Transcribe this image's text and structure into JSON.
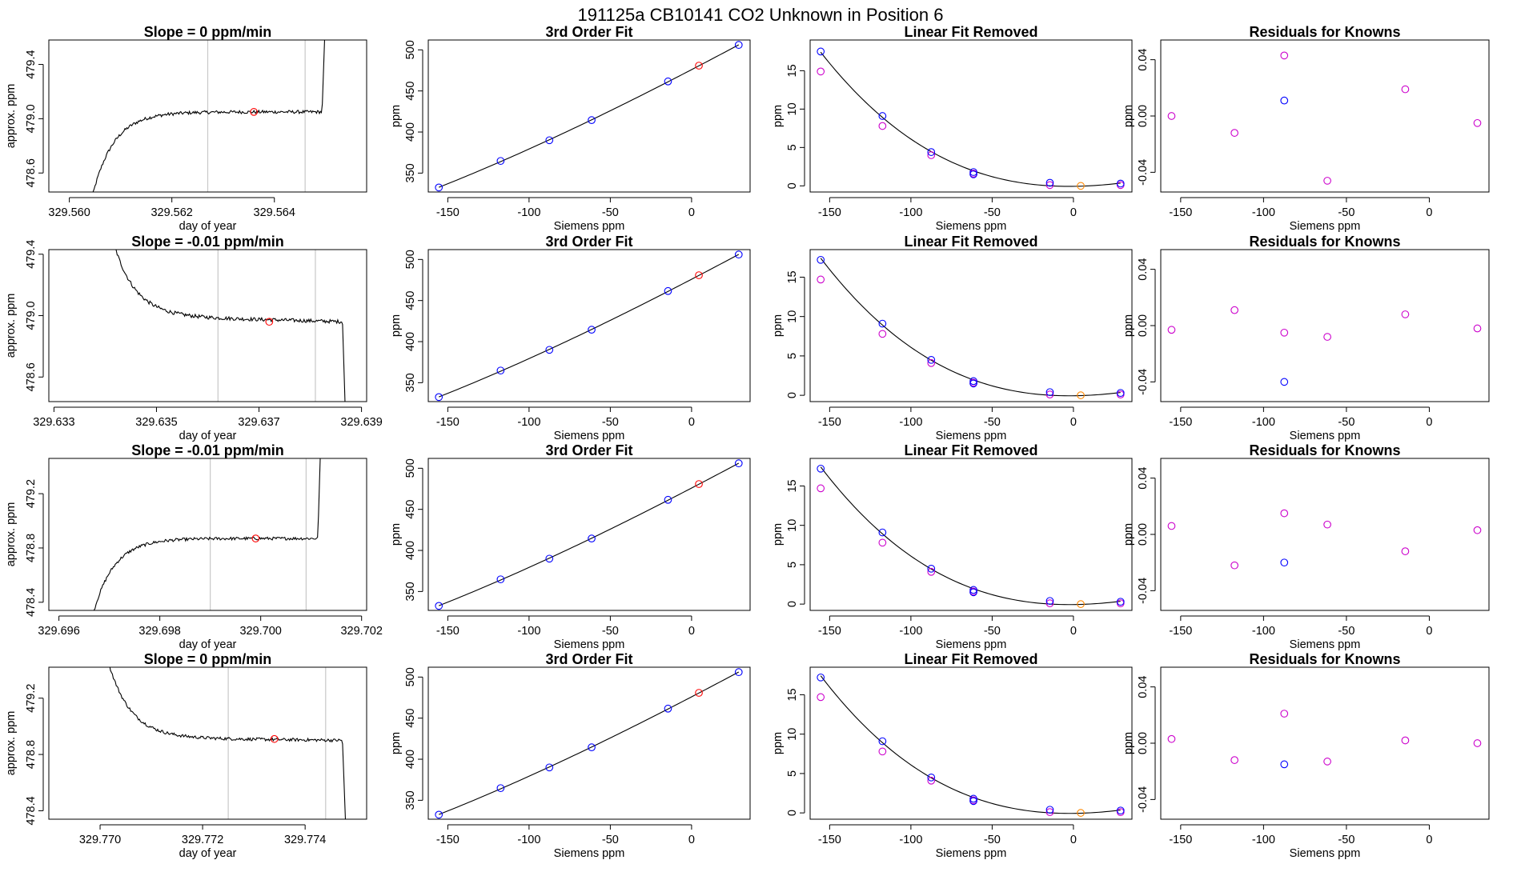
{
  "title": "191125a     CB10141    CO2 Unknown in Position  6",
  "colors": {
    "known": "#0000ff",
    "residual": "#cc00cc",
    "unknown": "#ff0000",
    "linear_unknown": "#ff8800",
    "vline": "#c8c8c8"
  },
  "chart_data": [
    {
      "row": 0,
      "col": 0,
      "type": "line",
      "title": "Slope =  0  ppm/min",
      "xlabel": "day of year",
      "ylabel": "approx. ppm",
      "xlim": [
        329.5596,
        329.5658
      ],
      "ylim": [
        478.46,
        479.58
      ],
      "xticks": [
        329.56,
        329.562,
        329.564
      ],
      "xtick_labels": [
        "329.560",
        "329.562",
        "329.564"
      ],
      "yticks": [
        478.6,
        479.0,
        479.4
      ],
      "ytick_labels": [
        "478.6",
        "479.0",
        "479.4"
      ],
      "vlines": [
        329.5627,
        329.5646
      ],
      "unknown_point": [
        329.5636,
        479.05
      ],
      "shape": "rise",
      "t_start": 329.5604,
      "plateau": 479.05,
      "t_end": 329.565,
      "level_low": 478.35,
      "level_high": 479.8,
      "noise": 0.012
    },
    {
      "row": 0,
      "col": 1,
      "type": "scatter",
      "title": "3rd Order Fit",
      "xlabel": "Siemens ppm",
      "ylabel": "ppm",
      "xlim": [
        -162,
        36
      ],
      "ylim": [
        327,
        512
      ],
      "xticks": [
        -150,
        -100,
        -50,
        0
      ],
      "xtick_labels": [
        "-150",
        "-100",
        "-50",
        "0"
      ],
      "yticks": [
        350,
        400,
        450,
        500
      ],
      "ytick_labels": [
        "350",
        "400",
        "450",
        "500"
      ],
      "knowns": {
        "x": [
          -155.5,
          -117.5,
          -87.5,
          -61.5,
          -14.5,
          29
        ],
        "y": [
          332.5,
          364.8,
          390,
          414.5,
          461.6,
          506
        ]
      },
      "unknown": {
        "x": [
          4.5
        ],
        "y": [
          480.8
        ]
      },
      "fit_line": true
    },
    {
      "row": 0,
      "col": 2,
      "type": "scatter",
      "title": "Linear Fit Removed",
      "xlabel": "Siemens ppm",
      "ylabel": "ppm",
      "xlim": [
        -162,
        36
      ],
      "ylim": [
        -0.8,
        19
      ],
      "xticks": [
        -150,
        -100,
        -50,
        0
      ],
      "xtick_labels": [
        "-150",
        "-100",
        "-50",
        "0"
      ],
      "yticks": [
        0,
        5,
        10,
        15
      ],
      "ytick_labels": [
        "0",
        "5",
        "10",
        "15"
      ],
      "knowns": {
        "x": [
          -155.5,
          -117.5,
          -87.5,
          -61.5,
          -61.5,
          -14.5,
          29
        ],
        "y": [
          17.5,
          9.1,
          4.4,
          1.8,
          1.5,
          0.4,
          0.3
        ]
      },
      "residual_points": {
        "x": [
          -155.5,
          -117.5,
          -87.5,
          -61.5,
          -14.5,
          29
        ],
        "y": [
          14.9,
          7.8,
          4.0,
          1.6,
          0.1,
          0.1
        ]
      },
      "unknown": {
        "x": [
          4.5
        ],
        "y": [
          0.0
        ]
      },
      "fit_curve": true
    },
    {
      "row": 0,
      "col": 3,
      "type": "scatter",
      "title": "Residuals for Knowns",
      "xlabel": "Siemens ppm",
      "ylabel": "ppm",
      "xlim": [
        -162,
        36
      ],
      "ylim": [
        -0.054,
        0.054
      ],
      "xticks": [
        -150,
        -100,
        -50,
        0
      ],
      "xtick_labels": [
        "-150",
        "-100",
        "-50",
        "0"
      ],
      "yticks": [
        -0.04,
        0.0,
        0.04
      ],
      "ytick_labels": [
        "-0.04",
        "0.00",
        "0.04"
      ],
      "knowns": {
        "x": [
          -87.5
        ],
        "y": [
          0.011
        ]
      },
      "residual_points": {
        "x": [
          -155.5,
          -117.5,
          -87.5,
          -61.5,
          -14.5,
          29
        ],
        "y": [
          0.0,
          -0.012,
          0.043,
          -0.046,
          0.019,
          -0.005
        ]
      }
    },
    {
      "row": 1,
      "col": 0,
      "type": "line",
      "title": "Slope =  -0.01  ppm/min",
      "xlabel": "day of year",
      "ylabel": "approx. ppm",
      "xlim": [
        329.6329,
        329.6391
      ],
      "ylim": [
        478.44,
        479.43
      ],
      "xticks": [
        329.633,
        329.635,
        329.637,
        329.639
      ],
      "xtick_labels": [
        "329.633",
        "329.635",
        "329.637",
        "329.639"
      ],
      "vlines": [
        329.6362,
        329.6381
      ],
      "unknown_point": [
        329.6372,
        478.96
      ],
      "yticks": [
        478.6,
        479.0,
        479.4
      ],
      "ytick_labels": [
        "478.6",
        "479.0",
        "479.4"
      ],
      "shape": "fall",
      "t_start": 329.634,
      "plateau": 479.0,
      "plateau_end": 478.96,
      "t_end": 329.6387,
      "level_low": 478.2,
      "level_high": 479.7,
      "noise": 0.012
    },
    {
      "row": 1,
      "col": 1,
      "type": "scatter",
      "title": "3rd Order Fit",
      "xlabel": "Siemens ppm",
      "ylabel": "ppm",
      "xlim": [
        -162,
        36
      ],
      "ylim": [
        327,
        512
      ],
      "xticks": [
        -150,
        -100,
        -50,
        0
      ],
      "xtick_labels": [
        "-150",
        "-100",
        "-50",
        "0"
      ],
      "yticks": [
        350,
        400,
        450,
        500
      ],
      "ytick_labels": [
        "350",
        "400",
        "450",
        "500"
      ],
      "knowns": {
        "x": [
          -155.5,
          -117.5,
          -87.5,
          -61.5,
          -14.5,
          29
        ],
        "y": [
          332.5,
          364.8,
          390,
          414.5,
          461.6,
          506
        ]
      },
      "unknown": {
        "x": [
          4.5
        ],
        "y": [
          480.8
        ]
      },
      "fit_line": true
    },
    {
      "row": 1,
      "col": 2,
      "type": "scatter",
      "title": "Linear Fit Removed",
      "xlabel": "Siemens ppm",
      "ylabel": "ppm",
      "xlim": [
        -162,
        36
      ],
      "ylim": [
        -0.8,
        18.5
      ],
      "xticks": [
        -150,
        -100,
        -50,
        0
      ],
      "xtick_labels": [
        "-150",
        "-100",
        "-50",
        "0"
      ],
      "yticks": [
        0,
        5,
        10,
        15
      ],
      "ytick_labels": [
        "0",
        "5",
        "10",
        "15"
      ],
      "knowns": {
        "x": [
          -155.5,
          -117.5,
          -87.5,
          -61.5,
          -61.5,
          -14.5,
          29
        ],
        "y": [
          17.2,
          9.1,
          4.5,
          1.8,
          1.5,
          0.4,
          0.3
        ]
      },
      "residual_points": {
        "x": [
          -155.5,
          -117.5,
          -87.5,
          -61.5,
          -14.5,
          29
        ],
        "y": [
          14.7,
          7.8,
          4.1,
          1.6,
          0.1,
          0.1
        ]
      },
      "unknown": {
        "x": [
          4.5
        ],
        "y": [
          0.0
        ]
      },
      "fit_curve": true
    },
    {
      "row": 1,
      "col": 3,
      "type": "scatter",
      "title": "Residuals for Knowns",
      "xlabel": "Siemens ppm",
      "ylabel": "ppm",
      "xlim": [
        -162,
        36
      ],
      "ylim": [
        -0.054,
        0.054
      ],
      "xticks": [
        -150,
        -100,
        -50,
        0
      ],
      "xtick_labels": [
        "-150",
        "-100",
        "-50",
        "0"
      ],
      "yticks": [
        -0.04,
        0.0,
        0.04
      ],
      "ytick_labels": [
        "-0.04",
        "0.00",
        "0.04"
      ],
      "knowns": {
        "x": [
          -87.5
        ],
        "y": [
          -0.04
        ]
      },
      "residual_points": {
        "x": [
          -155.5,
          -117.5,
          -87.5,
          -61.5,
          -14.5,
          29
        ],
        "y": [
          -0.003,
          0.011,
          -0.005,
          -0.008,
          0.008,
          -0.002
        ]
      }
    },
    {
      "row": 2,
      "col": 0,
      "type": "line",
      "title": "Slope =  -0.01  ppm/min",
      "xlabel": "day of year",
      "ylabel": "approx. ppm",
      "xlim": [
        329.6958,
        329.7021
      ],
      "ylim": [
        478.34,
        479.46
      ],
      "xticks": [
        329.696,
        329.698,
        329.7,
        329.702
      ],
      "xtick_labels": [
        "329.696",
        "329.698",
        "329.700",
        "329.702"
      ],
      "yticks": [
        478.4,
        478.8,
        479.2
      ],
      "ytick_labels": [
        "478.4",
        "478.8",
        "479.2"
      ],
      "vlines": [
        329.699,
        329.7009
      ],
      "unknown_point": [
        329.6999,
        478.87
      ],
      "shape": "rise",
      "t_start": 329.6966,
      "plateau": 478.87,
      "t_end": 329.7012,
      "level_low": 478.2,
      "level_high": 479.7,
      "noise": 0.011
    },
    {
      "row": 2,
      "col": 1,
      "type": "scatter",
      "title": "3rd Order Fit",
      "xlabel": "Siemens ppm",
      "ylabel": "ppm",
      "xlim": [
        -162,
        36
      ],
      "ylim": [
        327,
        512
      ],
      "xticks": [
        -150,
        -100,
        -50,
        0
      ],
      "xtick_labels": [
        "-150",
        "-100",
        "-50",
        "0"
      ],
      "yticks": [
        350,
        400,
        450,
        500
      ],
      "ytick_labels": [
        "350",
        "400",
        "450",
        "500"
      ],
      "knowns": {
        "x": [
          -155.5,
          -117.5,
          -87.5,
          -61.5,
          -14.5,
          29
        ],
        "y": [
          332.5,
          364.8,
          390,
          414.5,
          461.6,
          506
        ]
      },
      "unknown": {
        "x": [
          4.5
        ],
        "y": [
          480.8
        ]
      },
      "fit_line": true
    },
    {
      "row": 2,
      "col": 2,
      "type": "scatter",
      "title": "Linear Fit Removed",
      "xlabel": "Siemens ppm",
      "ylabel": "ppm",
      "xlim": [
        -162,
        36
      ],
      "ylim": [
        -0.8,
        18.5
      ],
      "xticks": [
        -150,
        -100,
        -50,
        0
      ],
      "xtick_labels": [
        "-150",
        "-100",
        "-50",
        "0"
      ],
      "yticks": [
        0,
        5,
        10,
        15
      ],
      "ytick_labels": [
        "0",
        "5",
        "10",
        "15"
      ],
      "knowns": {
        "x": [
          -155.5,
          -117.5,
          -87.5,
          -61.5,
          -61.5,
          -14.5,
          29
        ],
        "y": [
          17.2,
          9.1,
          4.5,
          1.8,
          1.5,
          0.4,
          0.3
        ]
      },
      "residual_points": {
        "x": [
          -155.5,
          -117.5,
          -87.5,
          -61.5,
          -14.5,
          29
        ],
        "y": [
          14.7,
          7.8,
          4.1,
          1.6,
          0.1,
          0.1
        ]
      },
      "unknown": {
        "x": [
          4.5
        ],
        "y": [
          0.0
        ]
      },
      "fit_curve": true
    },
    {
      "row": 2,
      "col": 3,
      "type": "scatter",
      "title": "Residuals for Knowns",
      "xlabel": "Siemens ppm",
      "ylabel": "ppm",
      "xlim": [
        -162,
        36
      ],
      "ylim": [
        -0.054,
        0.054
      ],
      "xticks": [
        -150,
        -100,
        -50,
        0
      ],
      "xtick_labels": [
        "-150",
        "-100",
        "-50",
        "0"
      ],
      "yticks": [
        -0.04,
        0.0,
        0.04
      ],
      "ytick_labels": [
        "-0.04",
        "0.00",
        "0.04"
      ],
      "knowns": {
        "x": [
          -87.5
        ],
        "y": [
          -0.02
        ]
      },
      "residual_points": {
        "x": [
          -155.5,
          -117.5,
          -87.5,
          -61.5,
          -14.5,
          29
        ],
        "y": [
          0.006,
          -0.022,
          0.015,
          0.007,
          -0.012,
          0.003
        ]
      }
    },
    {
      "row": 3,
      "col": 0,
      "type": "line",
      "title": "Slope =  0  ppm/min",
      "xlabel": "day of year",
      "ylabel": "approx. ppm",
      "xlim": [
        329.769,
        329.7752
      ],
      "ylim": [
        478.34,
        479.42
      ],
      "xticks": [
        329.77,
        329.772,
        329.774
      ],
      "xtick_labels": [
        "329.770",
        "329.772",
        "329.774"
      ],
      "yticks": [
        478.4,
        478.8,
        479.2
      ],
      "ytick_labels": [
        "478.4",
        "478.8",
        "479.2"
      ],
      "vlines": [
        329.7725,
        329.7744
      ],
      "unknown_point": [
        329.7734,
        478.91
      ],
      "shape": "fall",
      "t_start": 329.77,
      "plateau": 478.92,
      "plateau_end": 478.9,
      "t_end": 329.7748,
      "level_low": 478.2,
      "level_high": 479.7,
      "noise": 0.011
    },
    {
      "row": 3,
      "col": 1,
      "type": "scatter",
      "title": "3rd Order Fit",
      "xlabel": "Siemens ppm",
      "ylabel": "ppm",
      "xlim": [
        -162,
        36
      ],
      "ylim": [
        327,
        512
      ],
      "xticks": [
        -150,
        -100,
        -50,
        0
      ],
      "xtick_labels": [
        "-150",
        "-100",
        "-50",
        "0"
      ],
      "yticks": [
        350,
        400,
        450,
        500
      ],
      "ytick_labels": [
        "350",
        "400",
        "450",
        "500"
      ],
      "knowns": {
        "x": [
          -155.5,
          -117.5,
          -87.5,
          -61.5,
          -14.5,
          29
        ],
        "y": [
          332.5,
          364.8,
          390,
          414.5,
          461.6,
          506
        ]
      },
      "unknown": {
        "x": [
          4.5
        ],
        "y": [
          480.8
        ]
      },
      "fit_line": true
    },
    {
      "row": 3,
      "col": 2,
      "type": "scatter",
      "title": "Linear Fit Removed",
      "xlabel": "Siemens ppm",
      "ylabel": "ppm",
      "xlim": [
        -162,
        36
      ],
      "ylim": [
        -0.8,
        18.5
      ],
      "xticks": [
        -150,
        -100,
        -50,
        0
      ],
      "xtick_labels": [
        "-150",
        "-100",
        "-50",
        "0"
      ],
      "yticks": [
        0,
        5,
        10,
        15
      ],
      "ytick_labels": [
        "0",
        "5",
        "10",
        "15"
      ],
      "knowns": {
        "x": [
          -155.5,
          -117.5,
          -87.5,
          -61.5,
          -61.5,
          -14.5,
          29
        ],
        "y": [
          17.2,
          9.1,
          4.5,
          1.8,
          1.5,
          0.4,
          0.3
        ]
      },
      "residual_points": {
        "x": [
          -155.5,
          -117.5,
          -87.5,
          -61.5,
          -14.5,
          29
        ],
        "y": [
          14.7,
          7.8,
          4.1,
          1.6,
          0.1,
          0.1
        ]
      },
      "unknown": {
        "x": [
          4.5
        ],
        "y": [
          0.0
        ]
      },
      "fit_curve": true
    },
    {
      "row": 3,
      "col": 3,
      "type": "scatter",
      "title": "Residuals for Knowns",
      "xlabel": "Siemens ppm",
      "ylabel": "ppm",
      "xlim": [
        -162,
        36
      ],
      "ylim": [
        -0.054,
        0.054
      ],
      "xticks": [
        -150,
        -100,
        -50,
        0
      ],
      "xtick_labels": [
        "-150",
        "-100",
        "-50",
        "0"
      ],
      "yticks": [
        -0.04,
        0.0,
        0.04
      ],
      "ytick_labels": [
        "-0.04",
        "0.00",
        "0.04"
      ],
      "knowns": {
        "x": [
          -87.5
        ],
        "y": [
          -0.015
        ]
      },
      "residual_points": {
        "x": [
          -155.5,
          -117.5,
          -87.5,
          -61.5,
          -14.5,
          29
        ],
        "y": [
          0.003,
          -0.012,
          0.021,
          -0.013,
          0.002,
          0.0
        ]
      }
    }
  ]
}
